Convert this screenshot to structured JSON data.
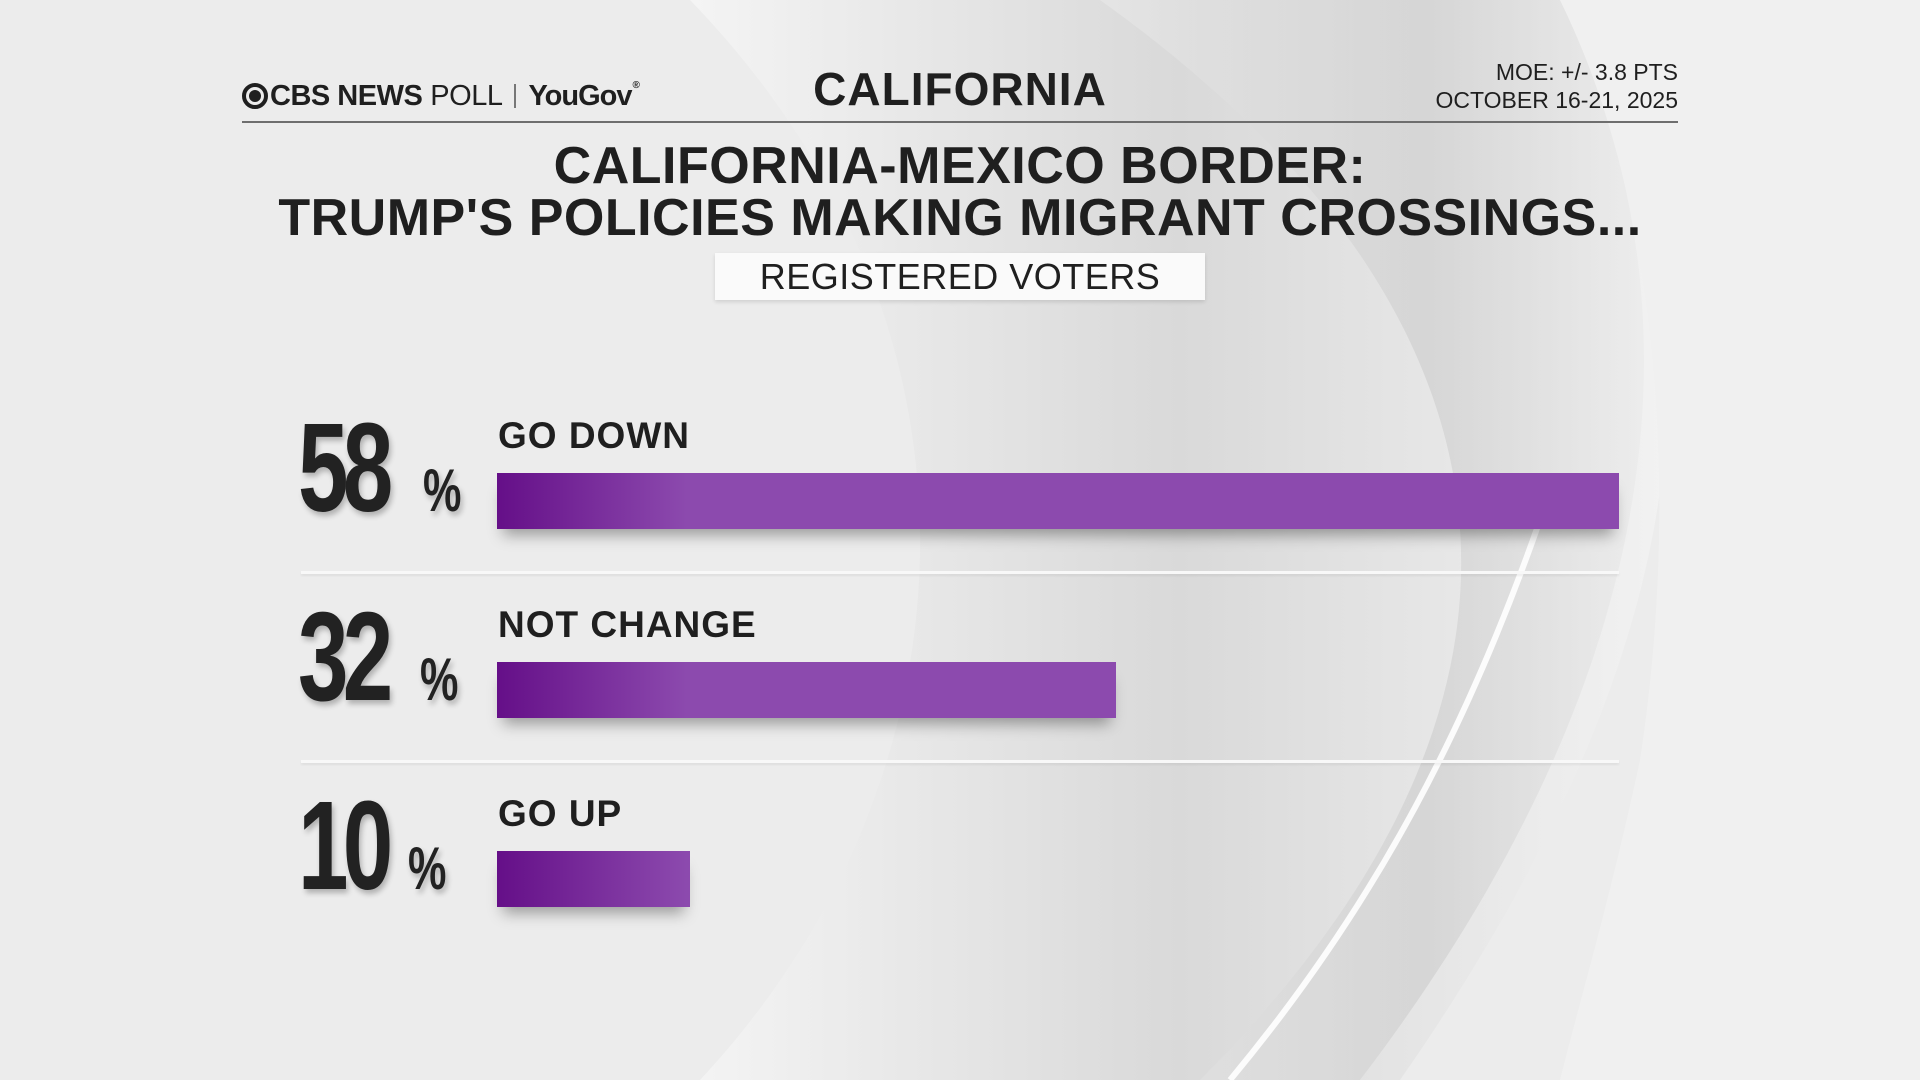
{
  "header": {
    "brand_bold": "CBS NEWS",
    "brand_light": "POLL",
    "partner": "YouGov",
    "partner_mark": "®",
    "state": "CALIFORNIA",
    "moe": "MOE: +/- 3.8 PTS",
    "dates": "OCTOBER 16-21, 2025"
  },
  "colors": {
    "bar_start": "#650f88",
    "bar_end": "#8c4aae",
    "text": "#1f1f1f",
    "background": "#ededed"
  },
  "chart_data": {
    "type": "bar",
    "orientation": "horizontal",
    "title": "CALIFORNIA-MEXICO BORDER: TRUMP'S POLICIES MAKING MIGRANT CROSSINGS...",
    "title_lines": [
      "CALIFORNIA-MEXICO BORDER:",
      "TRUMP'S POLICIES MAKING MIGRANT CROSSINGS..."
    ],
    "subtitle": "REGISTERED VOTERS",
    "categories": [
      "GO DOWN",
      "NOT CHANGE",
      "GO UP"
    ],
    "values": [
      58,
      32,
      10
    ],
    "value_labels": [
      "58",
      "32",
      "10"
    ],
    "unit": "%",
    "xlim": [
      0,
      100
    ],
    "grid": false,
    "legend": "none"
  }
}
